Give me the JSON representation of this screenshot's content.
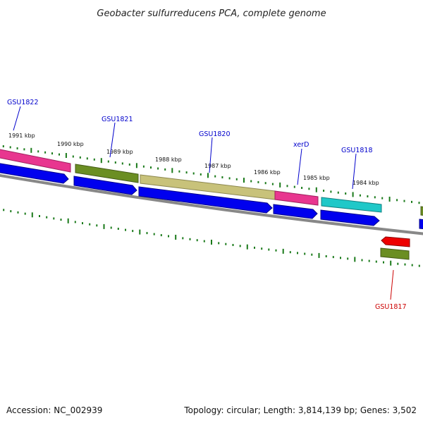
{
  "title": "Geobacter sulfurreducens PCA, complete genome",
  "footer": {
    "accession": "Accession: NC_002939",
    "summary": "Topology: circular; Length: 3,814,139 bp; Genes: 3,502"
  },
  "ticks": [
    {
      "label": "1991 kbp"
    },
    {
      "label": "1990 kbp"
    },
    {
      "label": "1989 kbp"
    },
    {
      "label": "1988 kbp"
    },
    {
      "label": "1987 kbp"
    },
    {
      "label": "1986 kbp"
    },
    {
      "label": "1985 kbp"
    },
    {
      "label": "1984 kbp"
    }
  ],
  "genes": [
    {
      "name": "GSU1822",
      "color": "#0000cc"
    },
    {
      "name": "GSU1821",
      "color": "#0000cc"
    },
    {
      "name": "GSU1820",
      "color": "#0000cc"
    },
    {
      "name": "xerD",
      "color": "#0000cc"
    },
    {
      "name": "GSU1818",
      "color": "#0000cc"
    },
    {
      "name": "GSU1817",
      "color": "#cc0000"
    }
  ],
  "colors": {
    "cds": "#0000ee",
    "magenta": "#e8368f",
    "olive": "#6b8e23",
    "khaki": "#c8c27a",
    "cyan": "#20c8c8",
    "red": "#ee0000",
    "backbone": "#888888",
    "tick": "#1a7a1a"
  }
}
